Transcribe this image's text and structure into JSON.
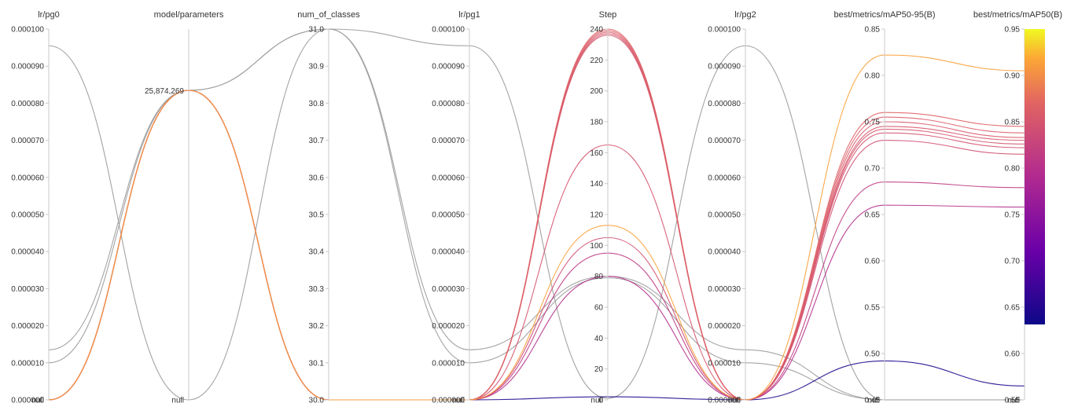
{
  "chart_data": {
    "type": "parallel_coordinates",
    "axes": [
      {
        "key": "lr_pg0",
        "title": "lr/pg0",
        "min": 0,
        "max": 0.0001,
        "null_label": "null",
        "ticks": [
          "0.000100",
          "0.000090",
          "0.000080",
          "0.000070",
          "0.000060",
          "0.000050",
          "0.000040",
          "0.000030",
          "0.000020",
          "0.000010",
          "0.000000"
        ]
      },
      {
        "key": "model_parameters",
        "title": "model/parameters",
        "null_label": "null",
        "value_label": "25,874,269"
      },
      {
        "key": "num_of_classes",
        "title": "num_of_classes",
        "min": 30.0,
        "max": 31.0,
        "ticks": [
          "31.0",
          "30.9",
          "30.8",
          "30.7",
          "30.6",
          "30.5",
          "30.4",
          "30.3",
          "30.2",
          "30.1",
          "30.0"
        ]
      },
      {
        "key": "lr_pg1",
        "title": "lr/pg1",
        "min": 0,
        "max": 0.0001,
        "null_label": "null",
        "ticks": [
          "0.000100",
          "0.000090",
          "0.000080",
          "0.000070",
          "0.000060",
          "0.000050",
          "0.000040",
          "0.000030",
          "0.000020",
          "0.000010",
          "0.000000"
        ]
      },
      {
        "key": "step",
        "title": "Step",
        "min": 0,
        "max": 240,
        "null_label": "null",
        "ticks": [
          "240",
          "220",
          "200",
          "180",
          "160",
          "140",
          "120",
          "100",
          "80",
          "60",
          "40",
          "20",
          "0"
        ]
      },
      {
        "key": "lr_pg2",
        "title": "lr/pg2",
        "min": 0,
        "max": 0.0001,
        "null_label": "null",
        "ticks": [
          "0.000100",
          "0.000090",
          "0.000080",
          "0.000070",
          "0.000060",
          "0.000050",
          "0.000040",
          "0.000030",
          "0.000020",
          "0.000010",
          "0.000000"
        ]
      },
      {
        "key": "map50_95",
        "title": "best/metrics/mAP50-95(B)",
        "min": 0.45,
        "max": 0.85,
        "null_label": "null",
        "ticks": [
          "0.85",
          "0.80",
          "0.75",
          "0.70",
          "0.65",
          "0.60",
          "0.55",
          "0.50",
          "0.45"
        ]
      },
      {
        "key": "map50",
        "title": "best/metrics/mAP50(B)",
        "min": 0.55,
        "max": 0.95,
        "null_label": "null",
        "ticks": [
          "0.95",
          "0.90",
          "0.85",
          "0.80",
          "0.75",
          "0.70",
          "0.65",
          "0.60",
          "0.55"
        ]
      }
    ],
    "colorscale": {
      "min": 0.55,
      "max": 0.95,
      "metric": "best/metrics/mAP50(B)"
    },
    "runs": [
      {
        "lr_pg0": null,
        "model_parameters": 25874269,
        "num_of_classes": 30.0,
        "lr_pg1": null,
        "step": 240,
        "lr_pg2": null,
        "map50_95": 0.76,
        "map50": 0.845
      },
      {
        "lr_pg0": null,
        "model_parameters": 25874269,
        "num_of_classes": 30.0,
        "lr_pg1": null,
        "step": 239,
        "lr_pg2": null,
        "map50_95": 0.755,
        "map50": 0.838
      },
      {
        "lr_pg0": null,
        "model_parameters": 25874269,
        "num_of_classes": 30.0,
        "lr_pg1": null,
        "step": 238,
        "lr_pg2": null,
        "map50_95": 0.75,
        "map50": 0.833
      },
      {
        "lr_pg0": null,
        "model_parameters": 25874269,
        "num_of_classes": 30.0,
        "lr_pg1": null,
        "step": 237,
        "lr_pg2": null,
        "map50_95": 0.745,
        "map50": 0.83
      },
      {
        "lr_pg0": null,
        "model_parameters": 25874269,
        "num_of_classes": 30.0,
        "lr_pg1": null,
        "step": 236,
        "lr_pg2": null,
        "map50_95": 0.742,
        "map50": 0.826
      },
      {
        "lr_pg0": null,
        "model_parameters": 25874269,
        "num_of_classes": 30.0,
        "lr_pg1": null,
        "step": 165,
        "lr_pg2": null,
        "map50_95": 0.738,
        "map50": 0.822
      },
      {
        "lr_pg0": null,
        "model_parameters": 25874269,
        "num_of_classes": 30.0,
        "lr_pg1": null,
        "step": 113,
        "lr_pg2": null,
        "map50_95": 0.822,
        "map50": 0.905
      },
      {
        "lr_pg0": null,
        "model_parameters": 25874269,
        "num_of_classes": 30.0,
        "lr_pg1": null,
        "step": 105,
        "lr_pg2": null,
        "map50_95": 0.73,
        "map50": 0.815
      },
      {
        "lr_pg0": null,
        "model_parameters": 25874269,
        "num_of_classes": 30.0,
        "lr_pg1": null,
        "step": 95,
        "lr_pg2": null,
        "map50_95": 0.685,
        "map50": 0.779
      },
      {
        "lr_pg0": null,
        "model_parameters": 25874269,
        "num_of_classes": 30.0,
        "lr_pg1": null,
        "step": 80,
        "lr_pg2": null,
        "map50_95": 0.66,
        "map50": 0.758
      },
      {
        "lr_pg0": null,
        "model_parameters": 25874269,
        "num_of_classes": 30.0,
        "lr_pg1": null,
        "step": 2,
        "lr_pg2": null,
        "map50_95": 0.492,
        "map50": 0.565
      },
      {
        "lr_pg0": 9.55e-05,
        "model_parameters": null,
        "num_of_classes": 31.0,
        "lr_pg1": 9.55e-05,
        "step": 1,
        "lr_pg2": 9.55e-05,
        "map50_95": null,
        "map50": null
      },
      {
        "lr_pg0": 1.35e-05,
        "model_parameters": 25874269,
        "num_of_classes": 31.0,
        "lr_pg1": 1.35e-05,
        "step": 80,
        "lr_pg2": 1.35e-05,
        "map50_95": null,
        "map50": null
      },
      {
        "lr_pg0": 1e-05,
        "model_parameters": 25874269,
        "num_of_classes": 31.0,
        "lr_pg1": 1e-05,
        "step": 79,
        "lr_pg2": 1e-05,
        "map50_95": null,
        "map50": null
      }
    ]
  }
}
